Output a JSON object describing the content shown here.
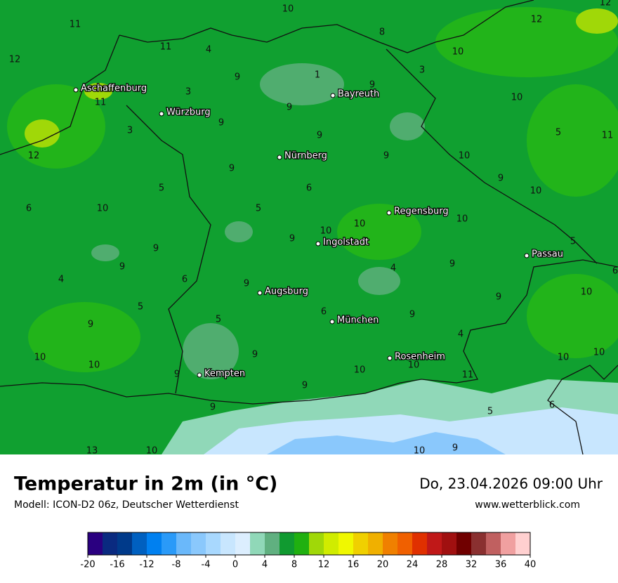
{
  "map": {
    "cities": [
      "Aschaffenburg",
      "Würzburg",
      "Bayreuth",
      "Nürnberg",
      "Regensburg",
      "Ingolstadt",
      "Passau",
      "Augsburg",
      "München",
      "Rosenheim",
      "Kempten"
    ],
    "contour_labels": [
      10,
      12,
      11,
      11,
      4,
      8,
      12,
      12,
      10,
      1,
      9,
      9,
      3,
      3,
      11,
      10,
      9,
      9,
      3,
      9,
      5,
      11,
      12,
      9,
      10,
      9,
      9,
      5,
      6,
      10,
      6,
      10,
      5,
      10,
      10,
      10,
      10,
      9,
      5,
      9,
      9,
      4,
      9,
      6,
      4,
      6,
      9,
      10,
      9,
      5,
      6,
      9,
      9,
      5,
      4,
      9,
      10,
      10,
      10,
      10,
      10,
      10,
      11,
      9,
      9,
      6,
      9,
      5,
      13,
      10,
      10,
      9
    ]
  },
  "footer": {
    "title": "Temperatur in 2m (in °C)",
    "model": "Modell: ICON-D2 06z, Deutscher Wetterdienst",
    "datetime": "Do, 23.04.2026 09:00 Uhr",
    "site": "www.wetterblick.com"
  },
  "legend": {
    "min": -20,
    "max": 40,
    "ticks": [
      -20,
      -16,
      -12,
      -8,
      -4,
      0,
      4,
      8,
      12,
      16,
      20,
      24,
      28,
      32,
      36,
      40
    ],
    "colors": [
      "#2a0080",
      "#0a2a80",
      "#003a8a",
      "#0060c0",
      "#0080f0",
      "#2a9af8",
      "#6ab8fa",
      "#8ac8fc",
      "#a8d8fe",
      "#c8e6fe",
      "#dceefe",
      "#90d8b8",
      "#60b080",
      "#109a30",
      "#20b010",
      "#a0d808",
      "#d0ec00",
      "#f0f800",
      "#f0d000",
      "#f0b000",
      "#f08000",
      "#f06000",
      "#e03000",
      "#c01818",
      "#a01010",
      "#700000",
      "#8a3030",
      "#c06060",
      "#f0a0a0",
      "#ffd0d0"
    ]
  }
}
